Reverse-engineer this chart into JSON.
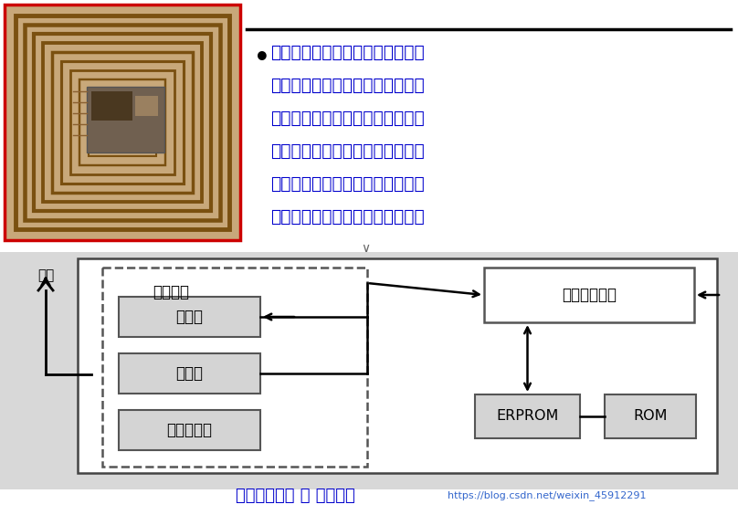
{
  "bg_color": "#ffffff",
  "text_color_blue": "#0000cc",
  "bullet_lines": [
    "系统工作时，阅读器发出查询信号",
    "（能量），无源标签在收到查询信",
    "号（能量）后将其一部分整流为直",
    "流电源供电子标签内的电路工作，",
    "一部分能量信号被电子标签内保存",
    "的数据信息调制后反射回阅读器。"
  ],
  "title_text": "电子标签外形 和 原理框图",
  "title_url": "https://blog.csdn.net/weixin_45912291",
  "antenna_label": "天线",
  "rf_label": "射频接口",
  "mod_label": "调制器",
  "demod_label": "解调器",
  "volt_label": "电压调节器",
  "logic_label": "逻辑控制单元",
  "erprom_label": "ERPROM",
  "rom_label": "ROM",
  "img_bg": "#c8a87a",
  "coil_colors": [
    "#a07820",
    "#b08828",
    "#c09030",
    "#c89838",
    "#d0a040"
  ],
  "bottom_bg": "#d8d8d8"
}
